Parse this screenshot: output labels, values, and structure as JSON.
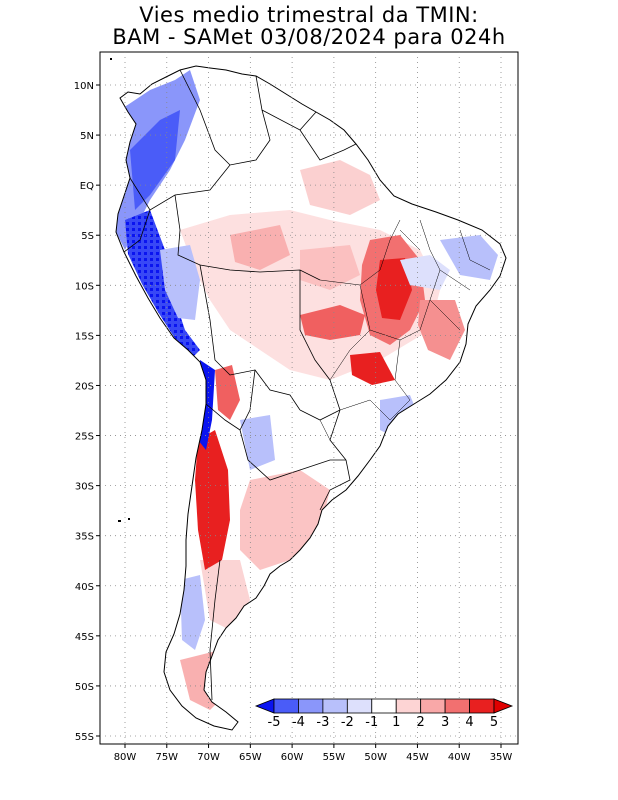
{
  "title": {
    "line1": "Vies medio trimestral da TMIN:",
    "line2": "BAM - SAMet 03/08/2024  para 024h"
  },
  "map": {
    "lat_labels": [
      "10N",
      "5N",
      "EQ",
      "5S",
      "10S",
      "15S",
      "20S",
      "25S",
      "30S",
      "35S",
      "40S",
      "45S",
      "50S",
      "55S"
    ],
    "lon_labels": [
      "80W",
      "75W",
      "70W",
      "65W",
      "60W",
      "55W",
      "50W",
      "45W",
      "40W",
      "35W"
    ],
    "lat_values": [
      10,
      5,
      0,
      -5,
      -10,
      -15,
      -20,
      -25,
      -30,
      -35,
      -40,
      -45,
      -50,
      -55
    ],
    "lon_values": [
      -80,
      -75,
      -70,
      -65,
      -60,
      -55,
      -50,
      -45,
      -40,
      -35
    ]
  },
  "colorbar": {
    "labels": [
      "-5",
      "-4",
      "-3",
      "-2",
      "-1",
      "1",
      "2",
      "3",
      "4",
      "5"
    ],
    "colors": [
      "#0a14f0",
      "#4a5cf8",
      "#8a96fa",
      "#b8c0fb",
      "#dde0fc",
      "#ffffff",
      "#fdd4d4",
      "#f9a8a8",
      "#f27070",
      "#e82020",
      "#e00000"
    ]
  }
}
